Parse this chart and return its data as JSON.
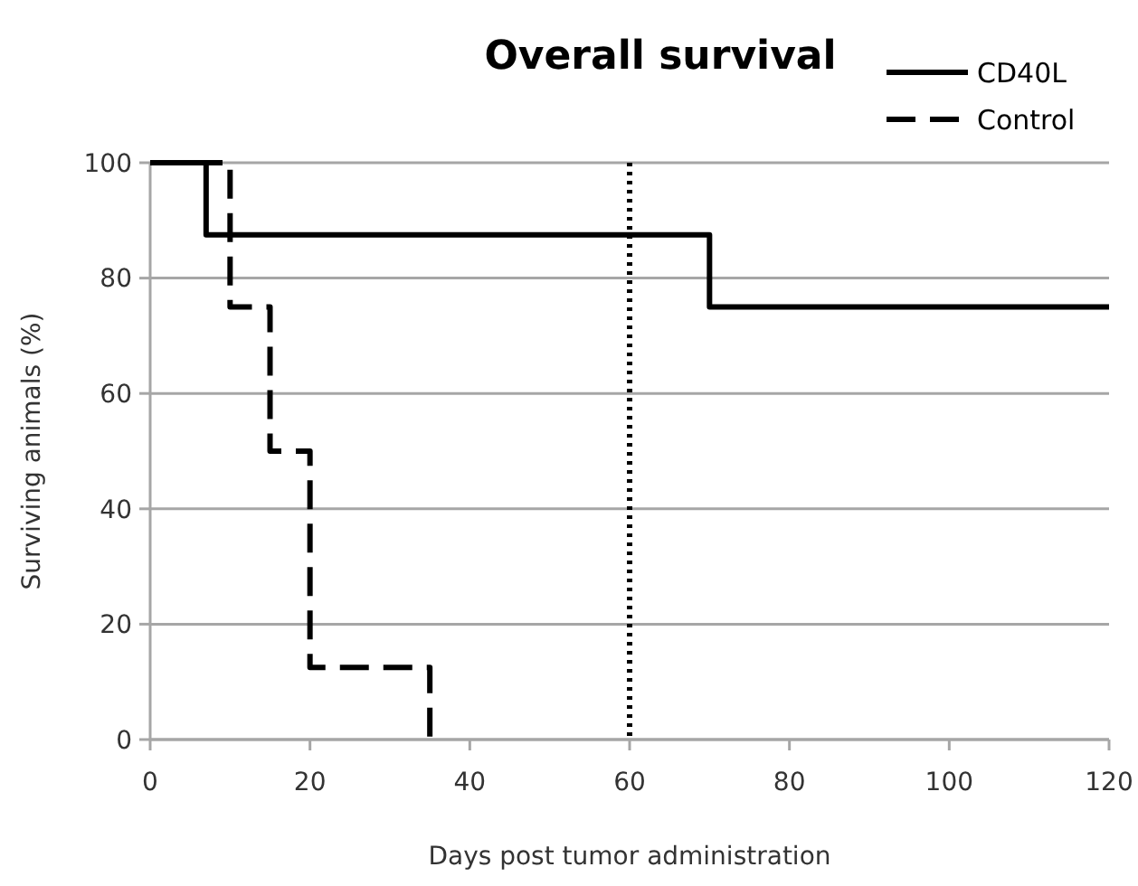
{
  "chart_data": {
    "type": "step",
    "title": "Overall survival",
    "xlabel": "Days post tumor administration",
    "ylabel": "Surviving animals (%)",
    "xlim": [
      0,
      120
    ],
    "xticks": [
      0,
      20,
      40,
      60,
      80,
      100,
      120
    ],
    "ylim": [
      0,
      100
    ],
    "yticks": [
      0,
      20,
      40,
      60,
      80,
      100
    ],
    "grid": "y",
    "legend": "top right",
    "series": [
      {
        "name": "CD40L",
        "color": "#000000",
        "line_style": "solid",
        "x": [
          0,
          7,
          70,
          120
        ],
        "values": [
          100,
          87.5,
          75,
          75
        ]
      },
      {
        "name": "Control",
        "color": "#000000",
        "line_style": "dashed",
        "x": [
          0,
          10,
          15,
          20,
          35
        ],
        "values": [
          100,
          75,
          50,
          12.5,
          0
        ]
      }
    ],
    "ref_lines": [
      {
        "axis": "x",
        "value": 60,
        "line_style": "dotted",
        "color": "#000000"
      }
    ]
  }
}
